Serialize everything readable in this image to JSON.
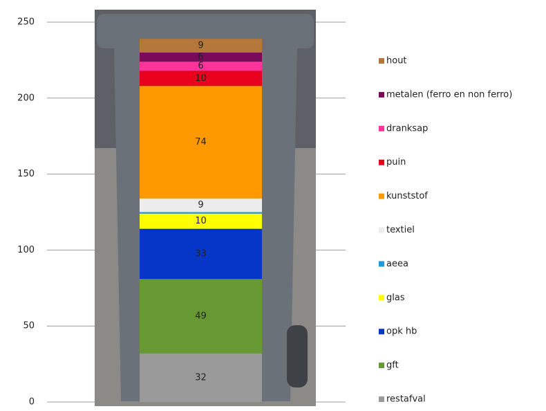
{
  "chart_data": {
    "type": "stacked-bar",
    "series": [
      {
        "name": "restafval",
        "color": "#9a9a9a",
        "values": [
          32
        ]
      },
      {
        "name": "gft",
        "color": "#669933",
        "values": [
          49
        ]
      },
      {
        "name": "opk hb",
        "color": "#0636c8",
        "values": [
          33
        ]
      },
      {
        "name": "glas",
        "color": "#ffff00",
        "values": [
          10
        ]
      },
      {
        "name": "aeea",
        "color": "#1e9bdc",
        "values": [
          1
        ]
      },
      {
        "name": "textiel",
        "color": "#ececec",
        "values": [
          9
        ]
      },
      {
        "name": "kunststof",
        "color": "#ff9900",
        "values": [
          74
        ]
      },
      {
        "name": "puin",
        "color": "#e8001c",
        "values": [
          10
        ]
      },
      {
        "name": "dranksap",
        "color": "#ff3399",
        "values": [
          6
        ]
      },
      {
        "name": "metalen (ferro en non ferro)",
        "color": "#7a0a5a",
        "values": [
          6
        ]
      },
      {
        "name": "hout",
        "color": "#b5773a",
        "values": [
          9
        ]
      }
    ],
    "ylim": [
      0,
      250
    ],
    "yticks": [
      0,
      50,
      100,
      150,
      200,
      250
    ],
    "grid": true,
    "legend": "right"
  }
}
